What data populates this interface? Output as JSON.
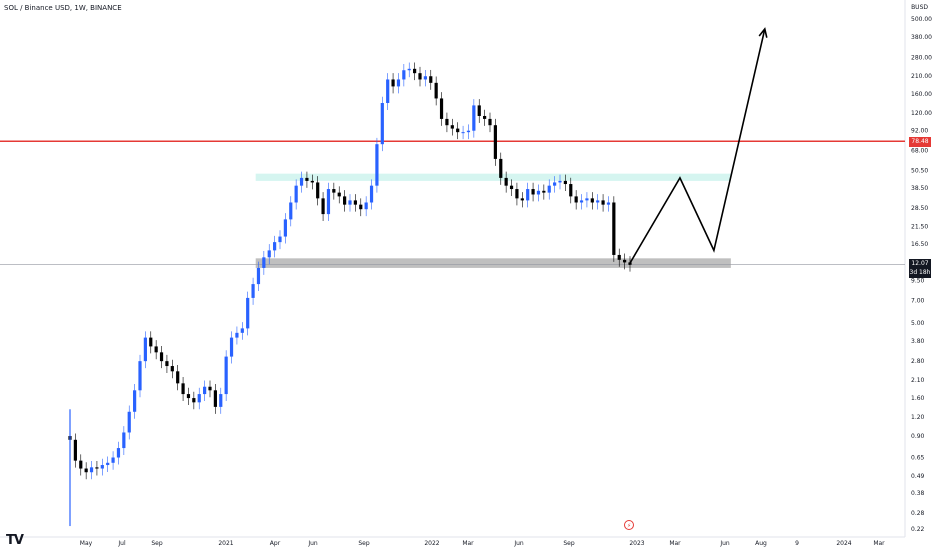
{
  "header": {
    "title": "SOL / Binance USD, 1W, BINANCE",
    "currency": "BUSD"
  },
  "price_tags": {
    "resistance": "78.48",
    "last_price": "12.07",
    "countdown": "3d 18h"
  },
  "event_marker": "⚡",
  "logo": "TV",
  "colors": {
    "up_candle": "#2962ff",
    "down_candle": "#000000",
    "resistance_line": "#e53935",
    "teal_zone": "#b2ece4",
    "gray_zone": "#b8b8b8",
    "projection": "#000000",
    "last_price_tag": "#131722"
  },
  "chart_data": {
    "type": "candlestick",
    "title": "SOL / Binance USD, 1W, BINANCE",
    "y_scale": "log",
    "y_currency": "BUSD",
    "ylim": [
      0.22,
      950
    ],
    "y_ticks": [
      "500.00",
      "380.00",
      "280.00",
      "210.00",
      "160.00",
      "120.00",
      "92.00",
      "68.00",
      "50.50",
      "38.50",
      "28.50",
      "21.50",
      "16.50",
      "9.50",
      "7.00",
      "5.00",
      "3.80",
      "2.80",
      "2.10",
      "1.60",
      "1.20",
      "0.90",
      "0.65",
      "0.49",
      "0.38",
      "0.28",
      "0.22"
    ],
    "x_ticks": [
      "May",
      "Jul",
      "Sep",
      "2021",
      "Apr",
      "Jun",
      "Sep",
      "2022",
      "Mar",
      "Jun",
      "Sep",
      "2023",
      "Mar",
      "Jun",
      "Aug",
      "9",
      "2024",
      "Mar"
    ],
    "approx_weekly_closes": [
      0.85,
      0.62,
      0.55,
      0.52,
      0.56,
      0.55,
      0.58,
      0.6,
      0.65,
      0.75,
      0.95,
      1.3,
      1.8,
      2.8,
      4.0,
      3.5,
      3.2,
      2.8,
      2.6,
      2.4,
      2.0,
      1.7,
      1.6,
      1.5,
      1.7,
      1.9,
      1.8,
      1.4,
      1.7,
      3.0,
      4.0,
      4.3,
      4.6,
      7.3,
      9.0,
      11.5,
      13.5,
      15.0,
      17.0,
      18.5,
      24.0,
      31.0,
      40.0,
      45.0,
      43.0,
      42.0,
      33.0,
      26.0,
      38.0,
      36.0,
      34.0,
      30.0,
      32.0,
      30.0,
      28.0,
      31.0,
      40.0,
      75.0,
      140.0,
      200.0,
      180.0,
      200.0,
      230.0,
      235.0,
      220.0,
      200.0,
      210.0,
      190.0,
      150.0,
      110.0,
      100.0,
      95.0,
      90.0,
      90.0,
      92.0,
      135.0,
      115.0,
      110.0,
      100.0,
      60.0,
      45.0,
      40.0,
      38.0,
      33.0,
      32.0,
      38.0,
      35.0,
      37.0,
      36.0,
      40.0,
      42.0,
      43.0,
      41.0,
      34.0,
      31.0,
      32.0,
      33.0,
      31.0,
      32.0,
      30.0,
      31.0,
      14.0,
      13.0,
      12.5,
      12.07
    ],
    "last_close": 12.07,
    "horizontal_lines": [
      {
        "value": 78.48,
        "color": "#e53935"
      }
    ],
    "zones": [
      {
        "name": "teal-zone",
        "low": 43,
        "high": 48,
        "x_start": "Mar 2021",
        "x_end": "Jul 2023",
        "color": "#b2ece4"
      },
      {
        "name": "gray-zone",
        "low": 11.5,
        "high": 13.3,
        "x_start": "Mar 2021",
        "x_end": "Jul 2023",
        "color": "#b8b8b8"
      }
    ],
    "projection_path": [
      {
        "x": "Jan 2023",
        "y": 12.07
      },
      {
        "x": "Apr 2023",
        "y": 45
      },
      {
        "x": "Jun 2023",
        "y": 15
      },
      {
        "x": "Sep 2023",
        "y": 430
      }
    ]
  }
}
